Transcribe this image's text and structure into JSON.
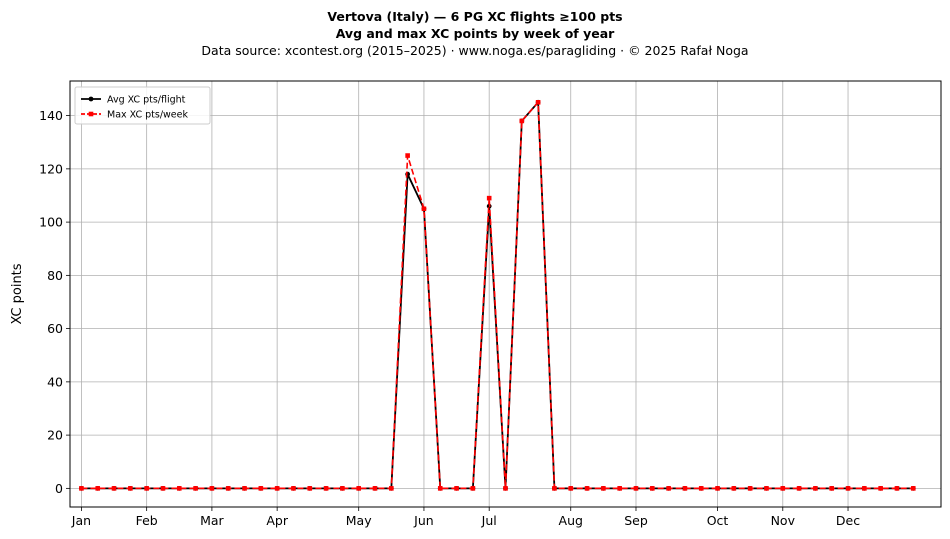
{
  "chart_data": {
    "type": "line",
    "title": "Vertova (Italy)  —  6 PG XC flights ≥100 pts",
    "subtitle": "Avg and max XC points by week of year",
    "source_note": "Data source: xcontest.org (2015–2025)  ·  www.noga.es/paragliding  ·  © 2025 Rafał Noga",
    "xlabel": "",
    "ylabel": "XC points",
    "ylim": [
      -7,
      153
    ],
    "yticks": [
      0,
      20,
      40,
      60,
      80,
      100,
      120,
      140
    ],
    "xlim": [
      -0.7,
      52.7
    ],
    "xtick_positions": [
      0,
      4,
      8,
      12,
      17,
      21,
      25,
      30,
      34,
      39,
      43,
      47
    ],
    "xtick_labels": [
      "Jan",
      "Feb",
      "Mar",
      "Apr",
      "May",
      "Jun",
      "Jul",
      "Aug",
      "Sep",
      "Oct",
      "Nov",
      "Dec"
    ],
    "grid": true,
    "legend_position": "upper-left",
    "x": [
      0,
      1,
      2,
      3,
      4,
      5,
      6,
      7,
      8,
      9,
      10,
      11,
      12,
      13,
      14,
      15,
      16,
      17,
      18,
      19,
      20,
      21,
      22,
      23,
      24,
      25,
      26,
      27,
      28,
      29,
      30,
      31,
      32,
      33,
      34,
      35,
      36,
      37,
      38,
      39,
      40,
      41,
      42,
      43,
      44,
      45,
      46,
      47,
      48,
      49,
      50,
      51
    ],
    "series": [
      {
        "name": "Avg XC pts/flight",
        "color": "#000000",
        "line_style": "solid",
        "marker": "circle",
        "values": [
          0,
          0,
          0,
          0,
          0,
          0,
          0,
          0,
          0,
          0,
          0,
          0,
          0,
          0,
          0,
          0,
          0,
          0,
          0,
          0,
          118,
          105,
          0,
          0,
          0,
          106,
          0,
          138,
          145,
          0,
          0,
          0,
          0,
          0,
          0,
          0,
          0,
          0,
          0,
          0,
          0,
          0,
          0,
          0,
          0,
          0,
          0,
          0,
          0,
          0,
          0,
          0
        ]
      },
      {
        "name": "Max XC pts/week",
        "color": "#ff0000",
        "line_style": "dashed",
        "marker": "square",
        "values": [
          0,
          0,
          0,
          0,
          0,
          0,
          0,
          0,
          0,
          0,
          0,
          0,
          0,
          0,
          0,
          0,
          0,
          0,
          0,
          0,
          125,
          105,
          0,
          0,
          0,
          109,
          0,
          138,
          145,
          0,
          0,
          0,
          0,
          0,
          0,
          0,
          0,
          0,
          0,
          0,
          0,
          0,
          0,
          0,
          0,
          0,
          0,
          0,
          0,
          0,
          0,
          0
        ]
      }
    ]
  }
}
